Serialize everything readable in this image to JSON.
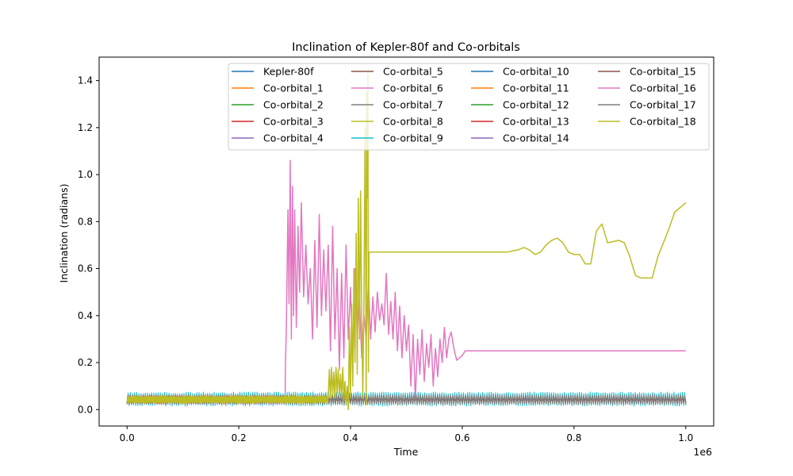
{
  "chart_data": {
    "type": "line",
    "title": "Inclination of Kepler-80f and Co-orbitals",
    "xlabel": "Time",
    "ylabel": "Inclination (radians)",
    "x_offset_label": "1e6",
    "x_scale": 1000000,
    "xlim": [
      -50000,
      1050000
    ],
    "ylim": [
      -0.07,
      1.5
    ],
    "xticks": [
      0,
      0.2,
      0.4,
      0.6,
      0.8,
      1.0
    ],
    "xtick_labels": [
      "0.0",
      "0.2",
      "0.4",
      "0.6",
      "0.8",
      "1.0"
    ],
    "yticks": [
      0,
      0.2,
      0.4,
      0.6,
      0.8,
      1.0,
      1.2,
      1.4
    ],
    "ytick_labels": [
      "0.0",
      "0.2",
      "0.4",
      "0.6",
      "0.8",
      "1.0",
      "1.2",
      "1.4"
    ],
    "grid": false,
    "legend_position": "top-right",
    "legend_columns": 4,
    "series": [
      {
        "name": "Kepler-80f",
        "color": "#1f77b4",
        "band": [
          0.025,
          0.06
        ],
        "end": 1000000,
        "x": [],
        "y": []
      },
      {
        "name": "Co-orbital_1",
        "color": "#ff7f0e",
        "band": [
          0.025,
          0.06
        ],
        "end": 1000000,
        "x": [],
        "y": []
      },
      {
        "name": "Co-orbital_2",
        "color": "#2ca02c",
        "band": [
          0.025,
          0.06
        ],
        "end": 1000000,
        "x": [],
        "y": []
      },
      {
        "name": "Co-orbital_3",
        "color": "#d62728",
        "band": [
          0.025,
          0.06
        ],
        "end": 1000000,
        "x": [],
        "y": []
      },
      {
        "name": "Co-orbital_4",
        "color": "#9467bd",
        "band": [
          0.025,
          0.06
        ],
        "end": 1000000,
        "x": [],
        "y": []
      },
      {
        "name": "Co-orbital_5",
        "color": "#8c564b",
        "band": [
          0.025,
          0.06
        ],
        "end": 1000000,
        "x": [],
        "y": []
      },
      {
        "name": "Co-orbital_6",
        "color": "#e377c2",
        "band": [
          0.025,
          0.06
        ],
        "end": 1000000,
        "x": [],
        "y": []
      },
      {
        "name": "Co-orbital_7",
        "color": "#7f7f7f",
        "band": [
          0.025,
          0.06
        ],
        "end": 1000000,
        "x": [],
        "y": []
      },
      {
        "name": "Co-orbital_8",
        "color": "#bcbd22",
        "band": [
          0.025,
          0.06
        ],
        "end": 1000000,
        "x": [],
        "y": []
      },
      {
        "name": "Co-orbital_9",
        "color": "#17becf",
        "band": [
          0.015,
          0.075
        ],
        "end": 1000000,
        "x": [],
        "y": []
      },
      {
        "name": "Co-orbital_10",
        "color": "#1f77b4",
        "band": [
          0.025,
          0.06
        ],
        "end": 1000000,
        "x": [],
        "y": []
      },
      {
        "name": "Co-orbital_11",
        "color": "#ff7f0e",
        "band": [
          0.025,
          0.06
        ],
        "end": 1000000,
        "x": [],
        "y": []
      },
      {
        "name": "Co-orbital_12",
        "color": "#2ca02c",
        "band": [
          0.025,
          0.06
        ],
        "end": 1000000,
        "x": [],
        "y": []
      },
      {
        "name": "Co-orbital_13",
        "color": "#d62728",
        "band": [
          0.025,
          0.06
        ],
        "end": 1000000,
        "x": [],
        "y": []
      },
      {
        "name": "Co-orbital_14",
        "color": "#9467bd",
        "band": [
          0.025,
          0.06
        ],
        "end": 1000000,
        "x": [],
        "y": []
      },
      {
        "name": "Co-orbital_15",
        "color": "#8c564b",
        "band": [
          0.025,
          0.06
        ],
        "end": 1000000,
        "x": [],
        "y": []
      },
      {
        "name": "Co-orbital_16",
        "color": "#e377c2",
        "band": [
          0.025,
          0.06
        ],
        "end": 283000,
        "x": [
          283000,
          283500,
          285000,
          288000,
          290000,
          292000,
          294000,
          296000,
          298000,
          300000,
          303000,
          306000,
          309000,
          312000,
          316000,
          320000,
          324000,
          328000,
          332000,
          336000,
          340000,
          344000,
          348000,
          352000,
          356000,
          360000,
          364000,
          368000,
          372000,
          376000,
          380000,
          384000,
          388000,
          392000,
          396000,
          400000,
          404000,
          408000,
          412000,
          416000,
          420000,
          424000,
          428000,
          432000,
          436000,
          440000,
          444000,
          448000,
          452000,
          456000,
          460000,
          464000,
          468000,
          472000,
          476000,
          480000,
          484000,
          488000,
          492000,
          496000,
          500000,
          504000,
          508000,
          512000,
          516000,
          520000,
          524000,
          528000,
          532000,
          536000,
          540000,
          544000,
          548000,
          552000,
          556000,
          560000,
          564000,
          568000,
          572000,
          576000,
          580000,
          585000,
          590000,
          595000,
          600000,
          605000,
          610000,
          700000,
          800000,
          900000,
          1000000
        ],
        "y": [
          0.07,
          0.2,
          0.33,
          0.85,
          0.45,
          1.06,
          0.3,
          0.95,
          0.4,
          0.85,
          0.35,
          0.78,
          0.5,
          0.88,
          0.48,
          0.7,
          0.45,
          0.6,
          0.3,
          0.72,
          0.35,
          0.83,
          0.4,
          0.68,
          0.42,
          0.7,
          0.25,
          0.78,
          0.3,
          0.6,
          0.17,
          0.58,
          0.22,
          0.7,
          0.3,
          0.52,
          0.18,
          0.6,
          0.32,
          0.48,
          0.22,
          0.4,
          0.3,
          0.55,
          0.3,
          0.48,
          0.33,
          0.5,
          0.38,
          0.45,
          0.36,
          0.58,
          0.32,
          0.46,
          0.3,
          0.5,
          0.25,
          0.44,
          0.22,
          0.4,
          0.25,
          0.36,
          0.1,
          0.32,
          0.04,
          0.3,
          0.15,
          0.34,
          0.12,
          0.28,
          0.18,
          0.32,
          0.1,
          0.26,
          0.14,
          0.3,
          0.2,
          0.35,
          0.22,
          0.3,
          0.33,
          0.26,
          0.21,
          0.22,
          0.23,
          0.25,
          0.25,
          0.25,
          0.25,
          0.25,
          0.25
        ]
      },
      {
        "name": "Co-orbital_17",
        "color": "#7f7f7f",
        "band": [
          0.02,
          0.065
        ],
        "end": 1000000,
        "x": [],
        "y": []
      },
      {
        "name": "Co-orbital_18",
        "color": "#bcbd22",
        "band": [
          0.025,
          0.06
        ],
        "end": 360000,
        "x": [
          360000,
          362000,
          364000,
          366000,
          368000,
          370000,
          372000,
          374000,
          376000,
          378000,
          380000,
          382000,
          384000,
          386000,
          388000,
          390000,
          392000,
          394000,
          396000,
          398000,
          400000,
          402000,
          404000,
          406000,
          408000,
          410000,
          412000,
          414000,
          416000,
          418000,
          420000,
          422000,
          424000,
          426000,
          428000,
          429000,
          430000,
          431000,
          432000,
          433000,
          434000,
          450000,
          500000,
          550000,
          580000,
          600000,
          620000,
          640000,
          660000,
          680000,
          700000,
          710000,
          720000,
          730000,
          740000,
          750000,
          760000,
          770000,
          780000,
          790000,
          800000,
          810000,
          820000,
          830000,
          840000,
          850000,
          860000,
          880000,
          890000,
          900000,
          910000,
          920000,
          930000,
          940000,
          950000,
          960000,
          970000,
          980000,
          1000000
        ],
        "y": [
          0.05,
          0.17,
          0.05,
          0.18,
          0.06,
          0.16,
          0.05,
          0.18,
          0.07,
          0.17,
          0.06,
          0.15,
          0.05,
          0.18,
          0.04,
          0.12,
          0.02,
          0.1,
          0.0,
          0.35,
          0.05,
          0.45,
          0.1,
          0.6,
          0.2,
          0.75,
          0.15,
          0.9,
          0.3,
          0.93,
          0.4,
          0.05,
          0.5,
          1.2,
          0.02,
          1.35,
          0.9,
          1.43,
          0.16,
          0.67,
          0.67,
          0.67,
          0.67,
          0.67,
          0.67,
          0.67,
          0.67,
          0.67,
          0.67,
          0.67,
          0.68,
          0.69,
          0.68,
          0.66,
          0.67,
          0.7,
          0.72,
          0.73,
          0.71,
          0.67,
          0.66,
          0.66,
          0.62,
          0.62,
          0.76,
          0.79,
          0.71,
          0.72,
          0.71,
          0.65,
          0.57,
          0.56,
          0.56,
          0.56,
          0.65,
          0.71,
          0.77,
          0.84,
          0.88
        ]
      }
    ]
  }
}
